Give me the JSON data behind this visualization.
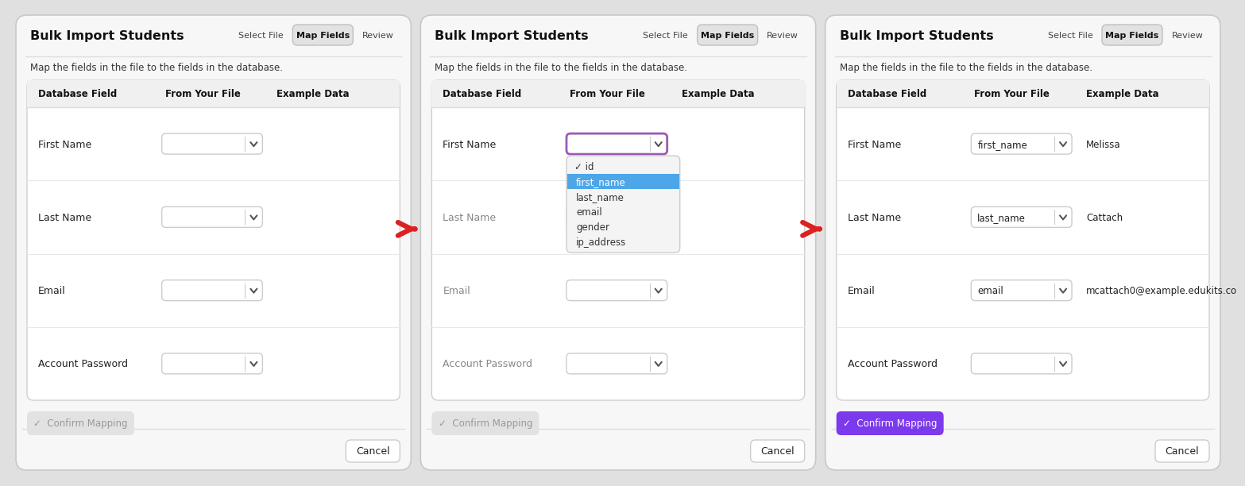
{
  "bg_color": "#e0e0e0",
  "panel_bg": "#f7f7f7",
  "panel_border": "#c8c8c8",
  "title": "Bulk Import Students",
  "subtitle": "Map the fields in the file to the fields in the database.",
  "nav_items": [
    "Select File",
    "Map Fields",
    "Review"
  ],
  "nav_active": "Map Fields",
  "db_fields": [
    "First Name",
    "Last Name",
    "Email",
    "Account Password"
  ],
  "col_headers": [
    "Database Field",
    "From Your File",
    "Example Data"
  ],
  "panel2_dropdown_items": [
    "id",
    "first_name",
    "last_name",
    "email",
    "gender",
    "ip_address"
  ],
  "panel2_selected_item": "first_name",
  "panel2_checked_item": "id",
  "panel3_dropdowns": [
    "first_name",
    "last_name",
    "email",
    ""
  ],
  "panel3_examples": [
    "Melissa",
    "Cattach",
    "mcattach0@example.edukits.co",
    ""
  ],
  "confirm_btn_inactive_bg": "#e2e2e2",
  "confirm_btn_inactive_text": "#999999",
  "confirm_btn_active_bg": "#7c3aed",
  "confirm_btn_active_text": "#ffffff",
  "cancel_btn_bg": "#ffffff",
  "cancel_btn_border": "#cccccc",
  "arrow_color": "#dd2020",
  "dropdown_border_normal": "#cccccc",
  "dropdown_border_active": "#9b59b6",
  "dropdown_highlight_bg": "#4da6e8",
  "dropdown_highlight_text": "#ffffff",
  "row_divider": "#e8e8e8",
  "header_divider": "#dddddd",
  "section_divider": "#dddddd",
  "table_bg": "#ffffff",
  "table_border": "#d0d0d0",
  "header_row_bg": "#f0f0f0"
}
